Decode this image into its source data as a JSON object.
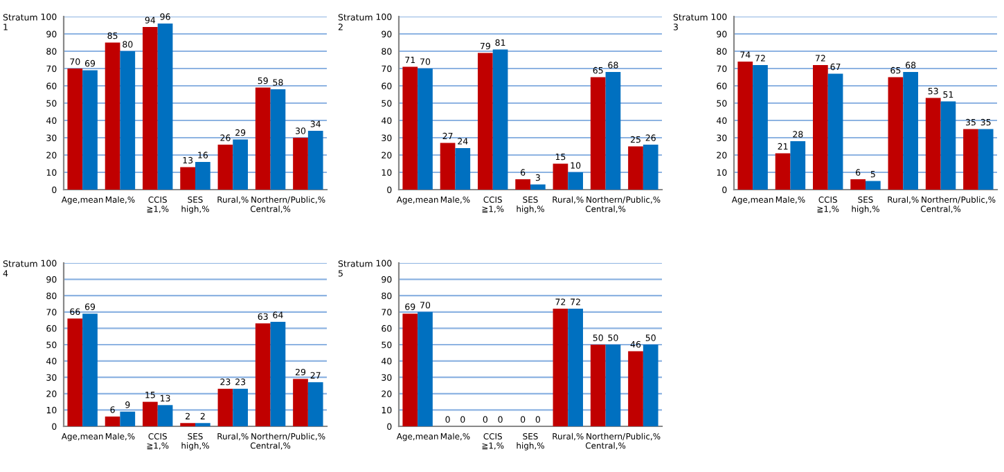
{
  "chart_data": [
    {
      "type": "bar",
      "title": "Stratum\n1",
      "categories": [
        "Age,mean",
        "Male,%",
        "CCIS\n≧1,%",
        "SES\nhigh,%",
        "Rural,%",
        "Northern/\nCentral,%",
        "Public,%"
      ],
      "series": [
        {
          "color": "#c00000",
          "values": [
            70,
            85,
            94,
            13,
            26,
            59,
            30
          ]
        },
        {
          "color": "#0070c0",
          "values": [
            69,
            80,
            96,
            16,
            29,
            58,
            34
          ]
        }
      ],
      "ylim": [
        0,
        100
      ],
      "yticks": [
        0,
        10,
        20,
        30,
        40,
        50,
        60,
        70,
        80,
        90,
        100
      ],
      "grid": "y",
      "data_labels": true
    },
    {
      "type": "bar",
      "title": "Stratum\n2",
      "categories": [
        "Age,mean",
        "Male,%",
        "CCIS\n≧1,%",
        "SES\nhigh,%",
        "Rural,%",
        "Northern/\nCentral,%",
        "Public,%"
      ],
      "series": [
        {
          "color": "#c00000",
          "values": [
            71,
            27,
            79,
            6,
            15,
            65,
            25
          ]
        },
        {
          "color": "#0070c0",
          "values": [
            70,
            24,
            81,
            3,
            10,
            68,
            26
          ]
        }
      ],
      "ylim": [
        0,
        100
      ],
      "yticks": [
        0,
        10,
        20,
        30,
        40,
        50,
        60,
        70,
        80,
        90,
        100
      ],
      "grid": "y",
      "data_labels": true
    },
    {
      "type": "bar",
      "title": "Stratum\n3",
      "categories": [
        "Age,mean",
        "Male,%",
        "CCIS\n≧1,%",
        "SES\nhigh,%",
        "Rural,%",
        "Northern/\nCentral,%",
        "Public,%"
      ],
      "series": [
        {
          "color": "#c00000",
          "values": [
            74,
            21,
            72,
            6,
            65,
            53,
            35
          ]
        },
        {
          "color": "#0070c0",
          "values": [
            72,
            28,
            67,
            5,
            68,
            51,
            35
          ]
        }
      ],
      "ylim": [
        0,
        100
      ],
      "yticks": [
        0,
        10,
        20,
        30,
        40,
        50,
        60,
        70,
        80,
        90,
        100
      ],
      "grid": "y",
      "data_labels": true
    },
    {
      "type": "bar",
      "title": "Stratum\n4",
      "categories": [
        "Age,mean",
        "Male,%",
        "CCIS\n≧1,%",
        "SES\nhigh,%",
        "Rural,%",
        "Northern/\nCentral,%",
        "Public,%"
      ],
      "series": [
        {
          "color": "#c00000",
          "values": [
            66,
            6,
            15,
            2,
            23,
            63,
            29
          ]
        },
        {
          "color": "#0070c0",
          "values": [
            69,
            9,
            13,
            2,
            23,
            64,
            27
          ]
        }
      ],
      "ylim": [
        0,
        100
      ],
      "yticks": [
        0,
        10,
        20,
        30,
        40,
        50,
        60,
        70,
        80,
        90,
        100
      ],
      "grid": "y",
      "data_labels": true
    },
    {
      "type": "bar",
      "title": "Stratum\n5",
      "categories": [
        "Age,mean",
        "Male,%",
        "CCIS\n≧1,%",
        "SES\nhigh,%",
        "Rural,%",
        "Northern/\nCentral,%",
        "Public,%"
      ],
      "series": [
        {
          "color": "#c00000",
          "values": [
            69,
            0,
            0,
            0,
            72,
            50,
            46
          ]
        },
        {
          "color": "#0070c0",
          "values": [
            70,
            0,
            0,
            0,
            72,
            50,
            50
          ]
        }
      ],
      "ylim": [
        0,
        100
      ],
      "yticks": [
        0,
        10,
        20,
        30,
        40,
        50,
        60,
        70,
        80,
        90,
        100
      ],
      "grid": "y",
      "data_labels": true
    }
  ]
}
